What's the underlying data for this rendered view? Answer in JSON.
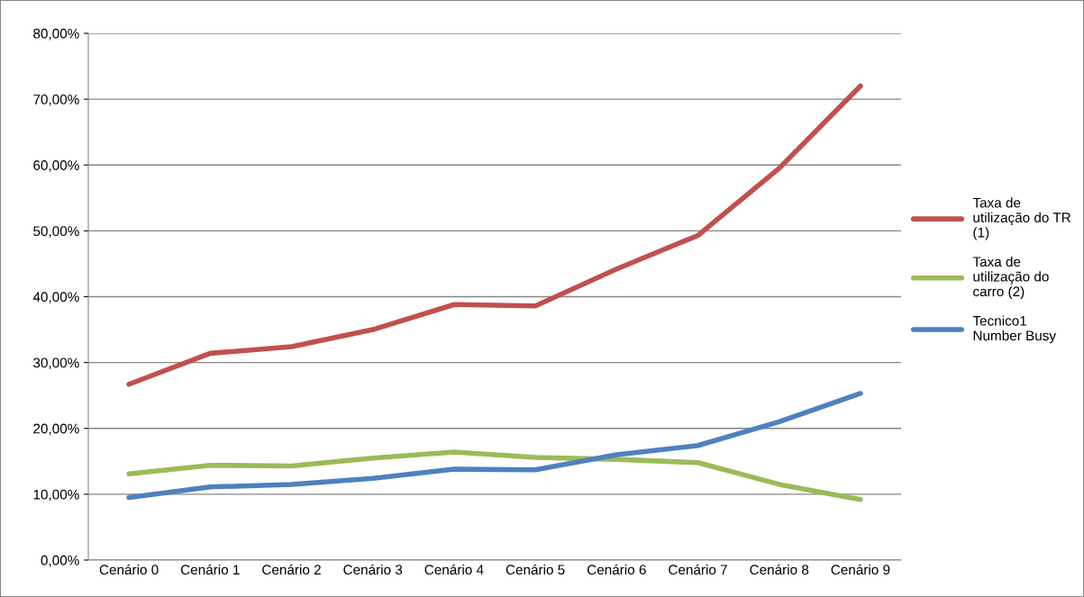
{
  "chart_data": {
    "type": "line",
    "categories": [
      "Cenário 0",
      "Cenário 1",
      "Cenário 2",
      "Cenário 3",
      "Cenário 4",
      "Cenário 5",
      "Cenário 6",
      "Cenário 7",
      "Cenário 8",
      "Cenário 9"
    ],
    "series": [
      {
        "name": "Taxa de\nutilização do TR\n(1)",
        "color": "#c0504d",
        "values": [
          26.7,
          31.4,
          32.4,
          35.0,
          38.8,
          38.6,
          44.2,
          49.3,
          59.5,
          72.0
        ]
      },
      {
        "name": "Taxa de\nutilização do\ncarro (2)",
        "color": "#9bbb59",
        "values": [
          13.1,
          14.4,
          14.3,
          15.5,
          16.4,
          15.6,
          15.3,
          14.8,
          11.5,
          9.2
        ]
      },
      {
        "name": "Tecnico1\nNumber Busy",
        "color": "#4f81bd",
        "values": [
          9.5,
          11.1,
          11.5,
          12.4,
          13.8,
          13.7,
          16.0,
          17.4,
          21.0,
          25.3
        ]
      }
    ],
    "ylim": [
      0,
      80
    ],
    "yticks": [
      {
        "value": 0,
        "label": "0,00%"
      },
      {
        "value": 10,
        "label": "10,00%"
      },
      {
        "value": 20,
        "label": "20,00%"
      },
      {
        "value": 30,
        "label": "30,00%"
      },
      {
        "value": 40,
        "label": "40,00%"
      },
      {
        "value": 50,
        "label": "50,00%"
      },
      {
        "value": 60,
        "label": "60,00%"
      },
      {
        "value": 70,
        "label": "70,00%"
      },
      {
        "value": 80,
        "label": "80,00%"
      }
    ],
    "grid": "y",
    "legend": "right",
    "marker": "none",
    "line_style": "solid"
  }
}
